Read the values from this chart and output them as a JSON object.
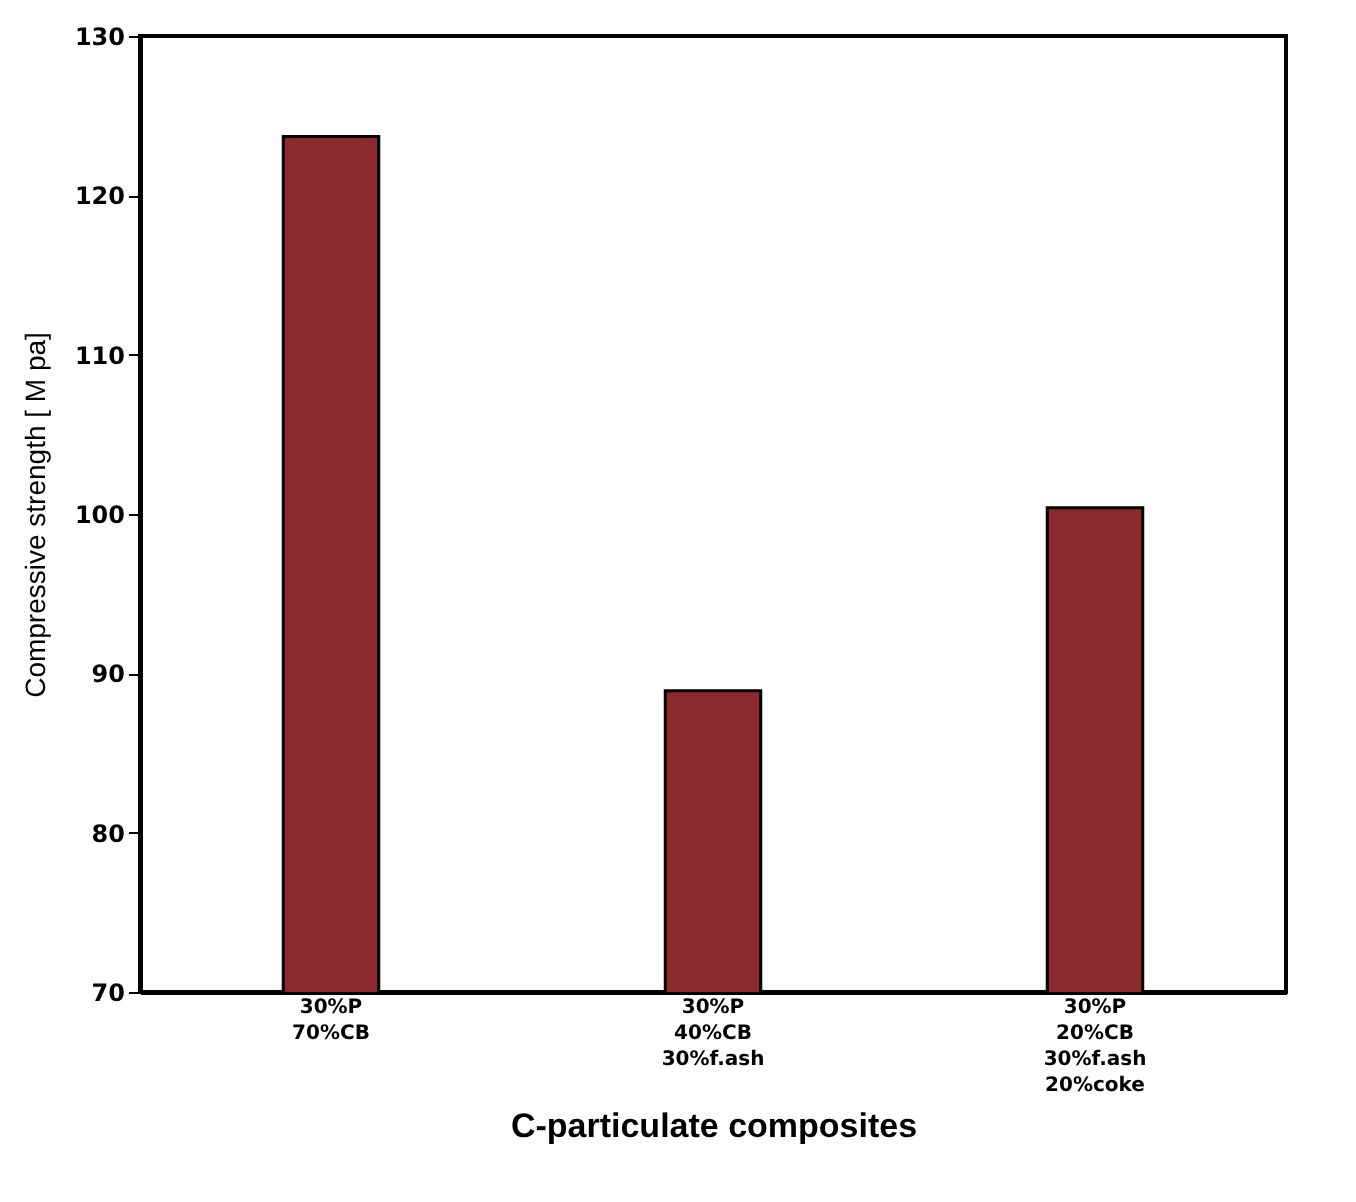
{
  "chart_data": {
    "type": "bar",
    "xlabel": "C-particulate composites",
    "ylabel": "Compressive strength [ M pa]",
    "categories": [
      "30%P\n70%CB",
      "30%P\n40%CB\n30%f.ash",
      "30%P\n20%CB\n30%f.ash\n20%coke"
    ],
    "values": [
      123.7,
      88.9,
      100.4
    ],
    "color": "#8b2a2e",
    "ylim": [
      70,
      130
    ],
    "yticks": [
      70,
      80,
      90,
      100,
      110,
      120,
      130
    ],
    "grid": false
  }
}
